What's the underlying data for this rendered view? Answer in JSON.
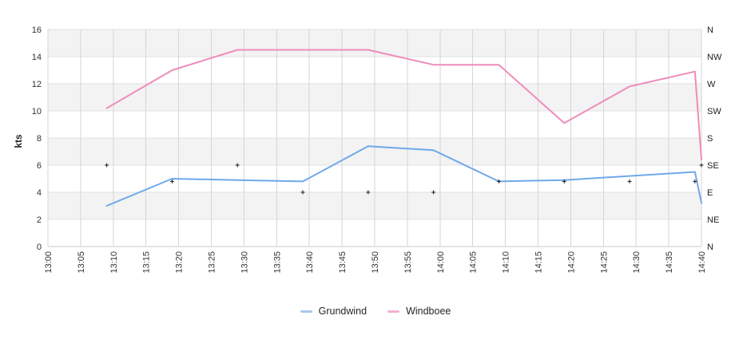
{
  "chart_data": {
    "type": "line",
    "title": "",
    "ylabel": "kts",
    "x_tick_labels": [
      "13:00",
      "13:05",
      "13:10",
      "13:15",
      "13:20",
      "13:25",
      "13:30",
      "13:35",
      "13:40",
      "13:45",
      "13:50",
      "13:55",
      "14:00",
      "14:05",
      "14:10",
      "14:15",
      "14:20",
      "14:25",
      "14:30",
      "14:35",
      "14:40"
    ],
    "y_left_ticks": [
      0,
      2,
      4,
      6,
      8,
      10,
      12,
      14,
      16
    ],
    "y_left_range": [
      0,
      16
    ],
    "y_right_labels_top_to_bottom": [
      "N",
      "NW",
      "W",
      "SW",
      "S",
      "SE",
      "E",
      "NE",
      "N"
    ],
    "points_time": [
      "13:09",
      "13:19",
      "13:29",
      "13:39",
      "13:49",
      "13:59",
      "14:09",
      "14:19",
      "14:29",
      "14:39",
      "14:40"
    ],
    "points_minutes_after_1300": [
      9,
      19,
      29,
      39,
      49,
      59,
      69,
      79,
      89,
      99,
      100
    ],
    "series": [
      {
        "name": "Grundwind",
        "color": "#6FA9E9",
        "legend_color": "#A8C8EE",
        "values": [
          3.0,
          5.0,
          4.9,
          4.8,
          7.4,
          7.1,
          4.8,
          4.9,
          5.2,
          5.5,
          3.2
        ]
      },
      {
        "name": "Windboee",
        "color": "#EF8CBB",
        "legend_color": "#F4B0D0",
        "values": [
          10.2,
          13.0,
          14.5,
          14.5,
          14.5,
          13.4,
          13.4,
          9.1,
          11.8,
          12.9,
          6.4
        ]
      }
    ],
    "direction_markers": {
      "marker": "plus",
      "color": "#1a1a1a",
      "values_on_kts_scale": [
        6.0,
        4.8,
        6.0,
        4.0,
        4.0,
        4.0,
        4.8,
        4.8,
        4.8,
        4.8,
        6.0
      ]
    },
    "grid": {
      "band_fill": "#f3f3f3",
      "v_line": "#d6d6d6",
      "h_line": "#e2e2e2",
      "axis_line": "#c9c9c9"
    },
    "legend_position": "bottom"
  }
}
